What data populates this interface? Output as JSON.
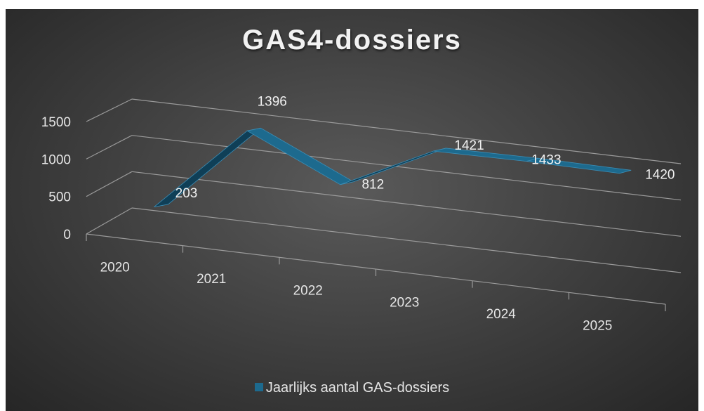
{
  "chart_data": {
    "type": "line",
    "style": "3d-ribbon",
    "title": "GAS4-dossiers",
    "categories": [
      "2020",
      "2021",
      "2022",
      "2023",
      "2024",
      "2025"
    ],
    "series": [
      {
        "name": "Jaarlijks aantal GAS-dossiers",
        "values": [
          203,
          1396,
          812,
          1421,
          1433,
          1420
        ]
      }
    ],
    "y_ticks": [
      "0",
      "500",
      "1000",
      "1500"
    ],
    "data_labels": [
      "203",
      "1396",
      "812",
      "1421",
      "1433",
      "1420"
    ],
    "ylim": [
      0,
      1500
    ],
    "grid": true,
    "legend_position": "bottom",
    "colors": {
      "series": "#1d6a8e",
      "series_top": "#3b8db5",
      "series_side": "#0f3f57",
      "background": "#3d3d3d",
      "text": "#e6e6e6"
    }
  }
}
